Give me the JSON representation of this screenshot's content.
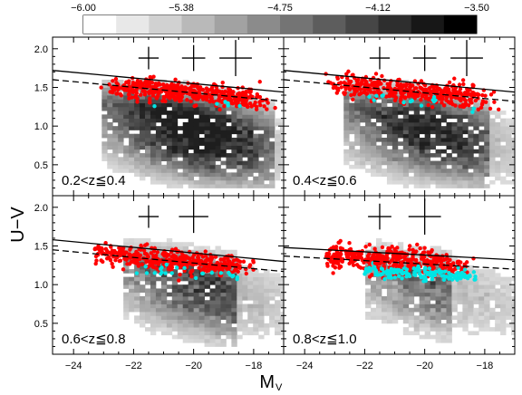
{
  "colorbar": {
    "ticks": [
      "−6.00",
      "−5.38",
      "−4.75",
      "−4.12",
      "−3.50"
    ],
    "min": -6.0,
    "max": -3.5,
    "scale": "greyscale-white-to-black"
  },
  "chart_data": [
    {
      "type": "scatter",
      "panel_label": "0.2<z≦0.4",
      "position": "top-left",
      "xlim": [
        -24.7,
        -17.0
      ],
      "ylim": [
        0.1,
        2.15
      ],
      "red_fraction": 1.0,
      "cyan_fraction": 0.02,
      "red_line": {
        "x": [
          -24.7,
          -17.0
        ],
        "y": [
          1.72,
          1.44
        ]
      },
      "dashed_line": {
        "x": [
          -24.7,
          -17.0
        ],
        "y": [
          1.6,
          1.32
        ]
      },
      "error_crosses": [
        {
          "x": -21.5,
          "dy": 0.05
        },
        {
          "x": -20.0,
          "dy": 0.06
        },
        {
          "x": -18.6,
          "dy": 0.09
        }
      ]
    },
    {
      "type": "scatter",
      "panel_label": "0.4<z≦0.6",
      "position": "top-right",
      "xlim": [
        -24.7,
        -17.0
      ],
      "ylim": [
        0.1,
        2.15
      ],
      "red_fraction": 0.97,
      "cyan_fraction": 0.05,
      "red_line": {
        "x": [
          -24.7,
          -17.0
        ],
        "y": [
          1.72,
          1.44
        ]
      },
      "dashed_line": {
        "x": [
          -24.7,
          -17.0
        ],
        "y": [
          1.6,
          1.32
        ]
      },
      "error_crosses": [
        {
          "x": -21.5,
          "dy": 0.05
        },
        {
          "x": -20.0,
          "dy": 0.06
        },
        {
          "x": -18.6,
          "dy": 0.09
        }
      ]
    },
    {
      "type": "scatter",
      "panel_label": "0.6<z≦0.8",
      "position": "bottom-left",
      "xlim": [
        -24.7,
        -17.0
      ],
      "ylim": [
        0.1,
        2.15
      ],
      "red_fraction": 0.95,
      "cyan_fraction": 0.08,
      "red_line": {
        "x": [
          -24.7,
          -17.0
        ],
        "y": [
          1.58,
          1.3
        ]
      },
      "dashed_line": {
        "x": [
          -24.7,
          -17.0
        ],
        "y": [
          1.45,
          1.17
        ]
      },
      "error_crosses": [
        {
          "x": -21.5,
          "dy": 0.05
        },
        {
          "x": -20.0,
          "dy": 0.08
        }
      ]
    },
    {
      "type": "scatter",
      "panel_label": "0.8<z≦1.0",
      "position": "bottom-right",
      "xlim": [
        -24.7,
        -17.0
      ],
      "ylim": [
        0.1,
        2.15
      ],
      "red_fraction": 0.7,
      "cyan_fraction": 0.45,
      "red_line": {
        "x": [
          -24.7,
          -17.0
        ],
        "y": [
          1.48,
          1.32
        ]
      },
      "dashed_line": {
        "x": [
          -24.7,
          -17.0
        ],
        "y": [
          1.37,
          1.2
        ]
      },
      "error_crosses": [
        {
          "x": -21.5,
          "dy": 0.06
        },
        {
          "x": -20.0,
          "dy": 0.09
        }
      ]
    }
  ],
  "axes": {
    "xlabel_main": "M",
    "xlabel_sub": "V",
    "ylabel": "U−V",
    "x_ticks": [
      -24,
      -22,
      -20,
      -18
    ],
    "x_tick_labels": [
      "−24",
      "−22",
      "−20",
      "−18"
    ],
    "y_ticks": [
      0.5,
      1.0,
      1.5,
      2.0
    ],
    "y_tick_labels": [
      "0.5",
      "1.0",
      "1.5",
      "2.0"
    ]
  },
  "colors": {
    "red_sequence": "#ff0000",
    "cyan_points": "#00e5e5",
    "lines": "#000000"
  }
}
